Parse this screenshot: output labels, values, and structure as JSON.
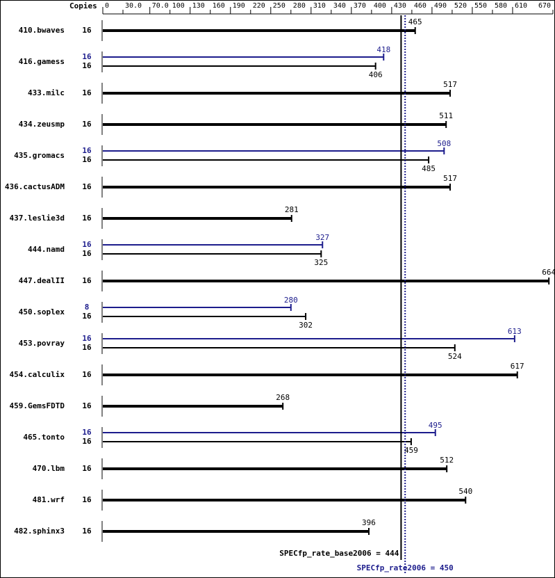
{
  "chart_data": {
    "type": "spec-bar",
    "copies_header": "Copies",
    "categories": [
      "410.bwaves",
      "416.gamess",
      "433.milc",
      "434.zeusmp",
      "435.gromacs",
      "436.cactusADM",
      "437.leslie3d",
      "444.namd",
      "447.dealII",
      "450.soplex",
      "453.povray",
      "454.calculix",
      "459.GemsFDTD",
      "465.tonto",
      "470.lbm",
      "481.wrf",
      "482.sphinx3"
    ],
    "base_copies": [
      16,
      16,
      16,
      16,
      16,
      16,
      16,
      16,
      16,
      16,
      16,
      16,
      16,
      16,
      16,
      16,
      16
    ],
    "base_values": [
      465,
      406,
      517,
      511,
      485,
      517,
      281,
      325,
      664,
      302,
      524,
      617,
      268,
      459,
      512,
      540,
      396
    ],
    "peak_copies": [
      null,
      16,
      null,
      null,
      16,
      null,
      null,
      16,
      null,
      8,
      16,
      null,
      null,
      16,
      null,
      null,
      null
    ],
    "peak_values": [
      null,
      418,
      null,
      null,
      508,
      null,
      null,
      327,
      null,
      280,
      613,
      null,
      null,
      495,
      null,
      null,
      null
    ],
    "base_color": "#000000",
    "peak_color": "#1c1c8c",
    "xlim": [
      0,
      670
    ],
    "xticks": [
      0,
      {
        "value": 30,
        "label": "30.0"
      },
      {
        "value": 70,
        "label": "70.0"
      },
      100,
      130,
      160,
      190,
      220,
      250,
      280,
      310,
      340,
      370,
      400,
      430,
      460,
      490,
      520,
      550,
      580,
      610,
      670
    ],
    "ref_lines": [
      {
        "value": 444,
        "label": "SPECfp_rate_base2006 = 444",
        "color": "#000000",
        "style": "solid"
      },
      {
        "value": 450,
        "label": "SPECfp_rate2006 = 450",
        "color": "#1c1c8c",
        "style": "dotted"
      }
    ]
  }
}
